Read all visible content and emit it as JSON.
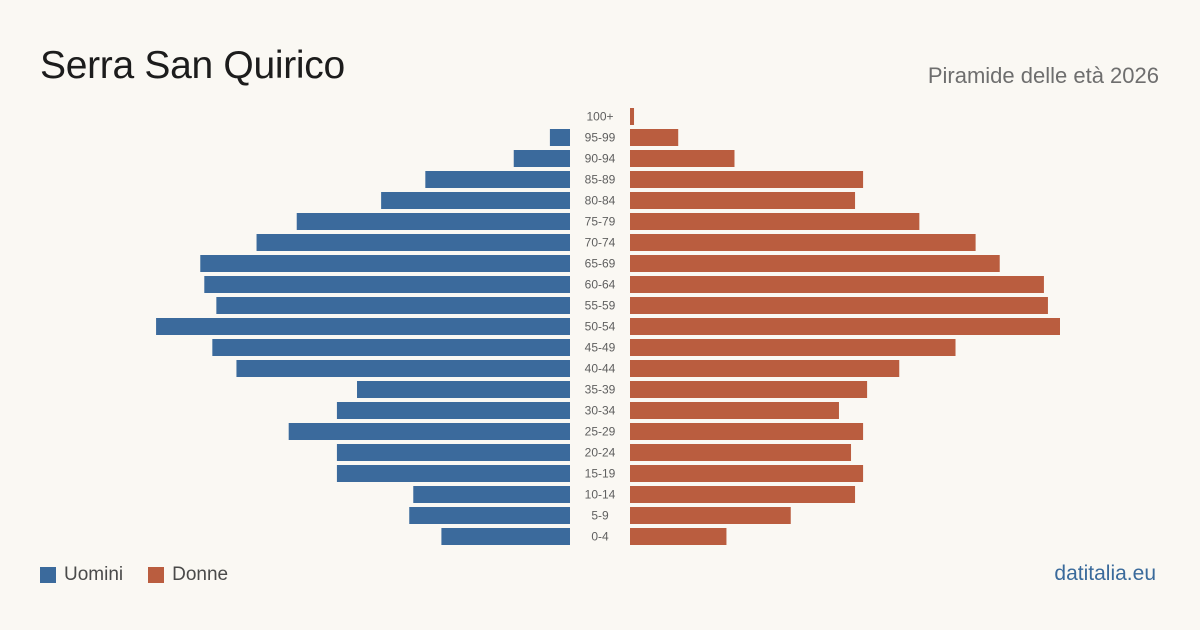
{
  "header": {
    "title": "Serra San Quirico",
    "subtitle": "Piramide delle età 2026"
  },
  "legend": {
    "men_label": "Uomini",
    "women_label": "Donne"
  },
  "footer": {
    "brand": "datitalia.eu"
  },
  "colors": {
    "men": "#3b6a9c",
    "women": "#ba5d3f",
    "background": "#faf8f3"
  },
  "chart_data": {
    "type": "bar",
    "orientation": "horizontal",
    "subtype": "population-pyramid",
    "categories": [
      "100+",
      "95-99",
      "90-94",
      "85-89",
      "80-84",
      "75-79",
      "70-74",
      "65-69",
      "60-64",
      "55-59",
      "50-54",
      "45-49",
      "40-44",
      "35-39",
      "30-34",
      "25-29",
      "20-24",
      "15-19",
      "10-14",
      "5-9",
      "0-4"
    ],
    "series": [
      {
        "name": "Uomini",
        "values": [
          0,
          5,
          14,
          36,
          47,
          68,
          78,
          92,
          91,
          88,
          103,
          89,
          83,
          53,
          58,
          70,
          58,
          58,
          39,
          40,
          32
        ]
      },
      {
        "name": "Donne",
        "values": [
          1,
          12,
          26,
          58,
          56,
          72,
          86,
          92,
          103,
          104,
          107,
          81,
          67,
          59,
          52,
          58,
          55,
          58,
          56,
          40,
          24
        ]
      }
    ],
    "xmax": 107,
    "grid": false,
    "legend_position": "bottom-left"
  }
}
